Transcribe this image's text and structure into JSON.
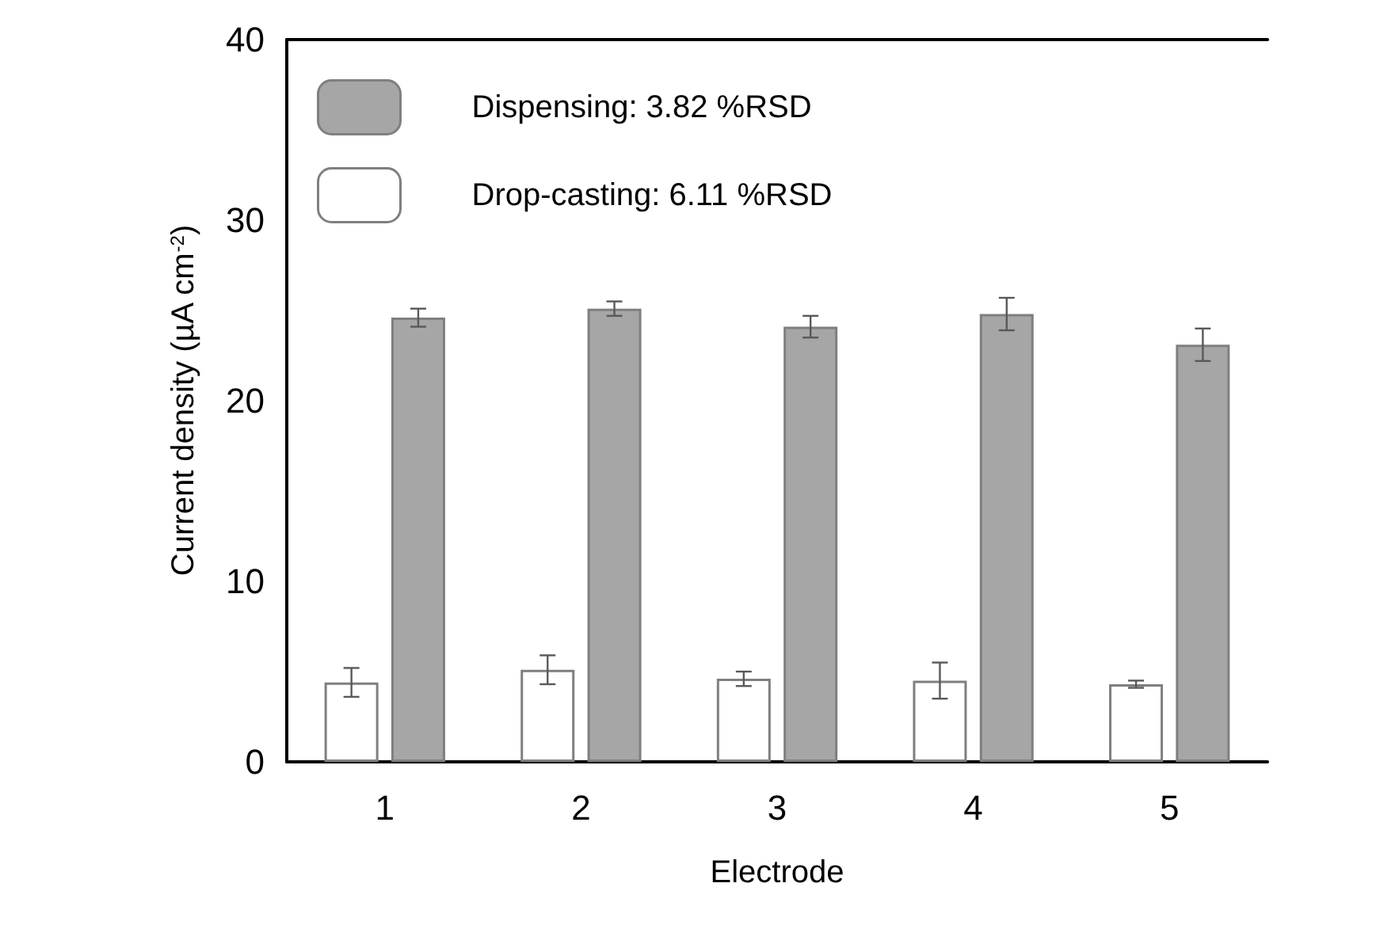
{
  "chart_data": {
    "type": "bar",
    "xlabel": "Electrode",
    "ylabel": "Current density (µA cm$^{-2}$)",
    "categories": [
      "1",
      "2",
      "3",
      "4",
      "5"
    ],
    "series": [
      {
        "name": "Drop-casting: 6.11 %RSD",
        "color": "#ffffff",
        "values": [
          4.4,
          5.1,
          4.6,
          4.5,
          4.3
        ],
        "errors": [
          0.8,
          0.8,
          0.4,
          1.0,
          0.2
        ]
      },
      {
        "name": "Dispensing: 3.82 %RSD",
        "color": "#a6a6a6",
        "values": [
          24.6,
          25.1,
          24.1,
          24.8,
          23.1
        ],
        "errors": [
          0.5,
          0.4,
          0.6,
          0.9,
          0.9
        ]
      }
    ],
    "ylim": [
      0,
      40
    ],
    "yticks": [
      0,
      10,
      20,
      30,
      40
    ],
    "grid": false,
    "legend": "top left"
  }
}
